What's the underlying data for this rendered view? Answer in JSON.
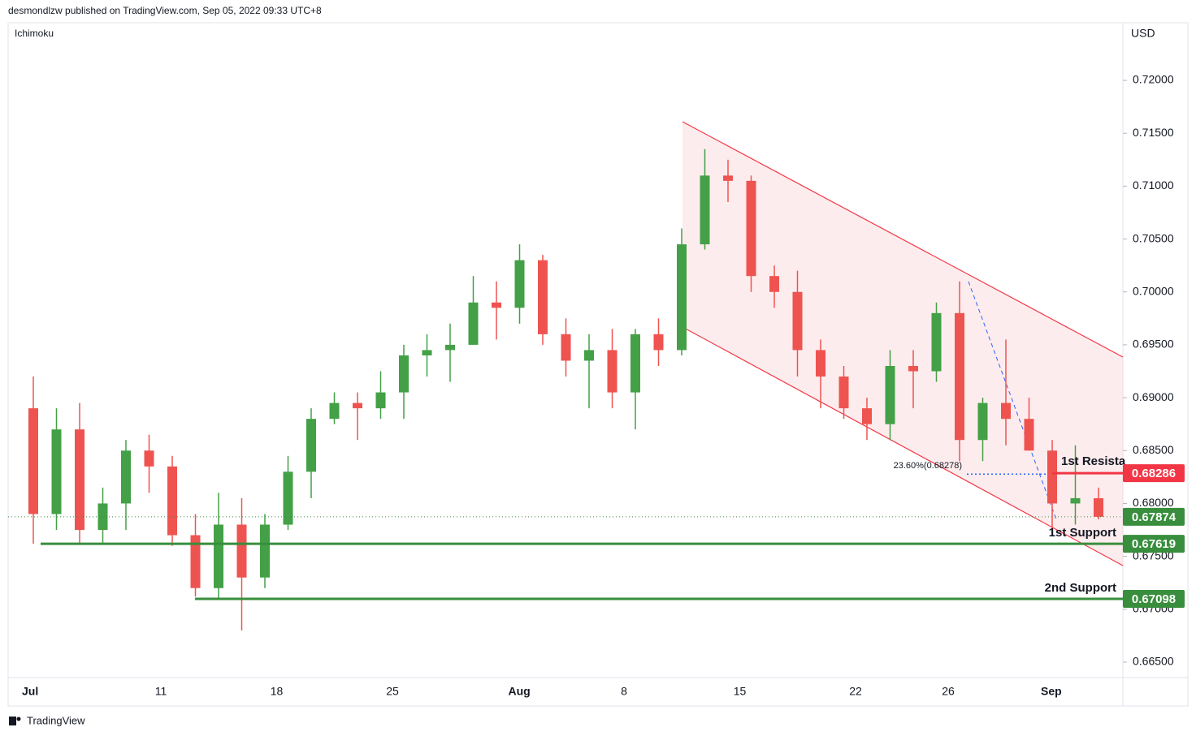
{
  "header": "desmondlzw published on TradingView.com, Sep 05, 2022 09:33 UTC+8",
  "footer": "TradingView",
  "chart_data": {
    "type": "candlestick",
    "indicator": "Ichimoku",
    "currency": "USD",
    "up_color": "#43a047",
    "down_color": "#ef5350",
    "categories": [
      "Jul",
      null,
      null,
      null,
      null,
      null,
      "11",
      null,
      null,
      null,
      null,
      "18",
      null,
      null,
      null,
      null,
      "25",
      null,
      null,
      null,
      null,
      "Aug",
      null,
      null,
      null,
      null,
      "8",
      null,
      null,
      null,
      null,
      "15",
      null,
      null,
      null,
      null,
      "22",
      null,
      null,
      null,
      "26",
      null,
      null,
      null,
      "Sep",
      null,
      null
    ],
    "open": [
      0.689,
      0.679,
      0.687,
      0.6775,
      0.68,
      0.685,
      0.6835,
      0.677,
      0.672,
      0.678,
      0.673,
      0.678,
      0.683,
      0.688,
      0.6895,
      0.689,
      0.6905,
      0.694,
      0.6945,
      0.695,
      0.699,
      0.6985,
      0.703,
      0.696,
      0.6935,
      0.6945,
      0.6905,
      0.696,
      0.6945,
      0.7045,
      0.711,
      0.7105,
      0.7015,
      0.7,
      0.6945,
      0.692,
      0.689,
      0.6875,
      0.693,
      0.6925,
      0.698,
      0.686,
      0.6895,
      0.688,
      0.685,
      0.68,
      0.6805
    ],
    "high": [
      0.692,
      0.689,
      0.6895,
      0.6815,
      0.686,
      0.6865,
      0.6845,
      0.679,
      0.681,
      0.6805,
      0.679,
      0.6845,
      0.689,
      0.6905,
      0.6905,
      0.6925,
      0.695,
      0.696,
      0.697,
      0.7015,
      0.701,
      0.7045,
      0.7035,
      0.6975,
      0.696,
      0.6965,
      0.6965,
      0.6975,
      0.706,
      0.7135,
      0.7125,
      0.711,
      0.7025,
      0.702,
      0.6955,
      0.693,
      0.69,
      0.6945,
      0.6945,
      0.699,
      0.701,
      0.69,
      0.6955,
      0.69,
      0.686,
      0.6855,
      0.6815
    ],
    "low": [
      0.6762,
      0.6775,
      0.6762,
      0.6762,
      0.6775,
      0.681,
      0.676,
      0.6712,
      0.671,
      0.668,
      0.672,
      0.6775,
      0.6805,
      0.6875,
      0.686,
      0.688,
      0.688,
      0.692,
      0.6915,
      0.695,
      0.6955,
      0.697,
      0.695,
      0.692,
      0.689,
      0.689,
      0.687,
      0.693,
      0.694,
      0.704,
      0.7085,
      0.7,
      0.6985,
      0.692,
      0.689,
      0.688,
      0.686,
      0.686,
      0.689,
      0.6915,
      0.684,
      0.684,
      0.6855,
      0.685,
      0.677,
      0.678,
      0.6785
    ],
    "close": [
      0.679,
      0.687,
      0.6775,
      0.68,
      0.685,
      0.6835,
      0.677,
      0.672,
      0.678,
      0.673,
      0.678,
      0.683,
      0.688,
      0.6895,
      0.689,
      0.6905,
      0.694,
      0.6945,
      0.695,
      0.699,
      0.6985,
      0.703,
      0.696,
      0.6935,
      0.6945,
      0.6905,
      0.696,
      0.6945,
      0.7045,
      0.711,
      0.7105,
      0.7015,
      0.7,
      0.6945,
      0.692,
      0.689,
      0.6875,
      0.693,
      0.6925,
      0.698,
      0.686,
      0.6895,
      0.688,
      0.685,
      0.68,
      0.6805,
      0.67874
    ],
    "ylim": [
      0.66354,
      0.72545
    ],
    "yticks": [
      {
        "value": 0.665,
        "label": "0.66500"
      },
      {
        "value": 0.67,
        "label": "0.67000"
      },
      {
        "value": 0.675,
        "label": "0.67500"
      },
      {
        "value": 0.68,
        "label": "0.68000"
      },
      {
        "value": 0.685,
        "label": "0.68500"
      },
      {
        "value": 0.69,
        "label": "0.69000"
      },
      {
        "value": 0.695,
        "label": "0.69500"
      },
      {
        "value": 0.7,
        "label": "0.70000"
      },
      {
        "value": 0.705,
        "label": "0.70500"
      },
      {
        "value": 0.71,
        "label": "0.71000"
      },
      {
        "value": 0.715,
        "label": "0.71500"
      },
      {
        "value": 0.72,
        "label": "0.72000"
      }
    ],
    "levels": [
      {
        "label": "1st Resista",
        "value": 0.68286,
        "color": "#f23645"
      },
      {
        "label": "1st Support",
        "value": 0.67619,
        "color": "#388e3c"
      },
      {
        "label": "2nd Support",
        "value": 0.67098,
        "color": "#388e3c"
      }
    ],
    "last_price": {
      "value": 0.67874,
      "color": "#388e3c"
    },
    "fib": {
      "label": "23.60%(0.68278)",
      "value": 0.68278,
      "color": "#2962ff"
    }
  }
}
